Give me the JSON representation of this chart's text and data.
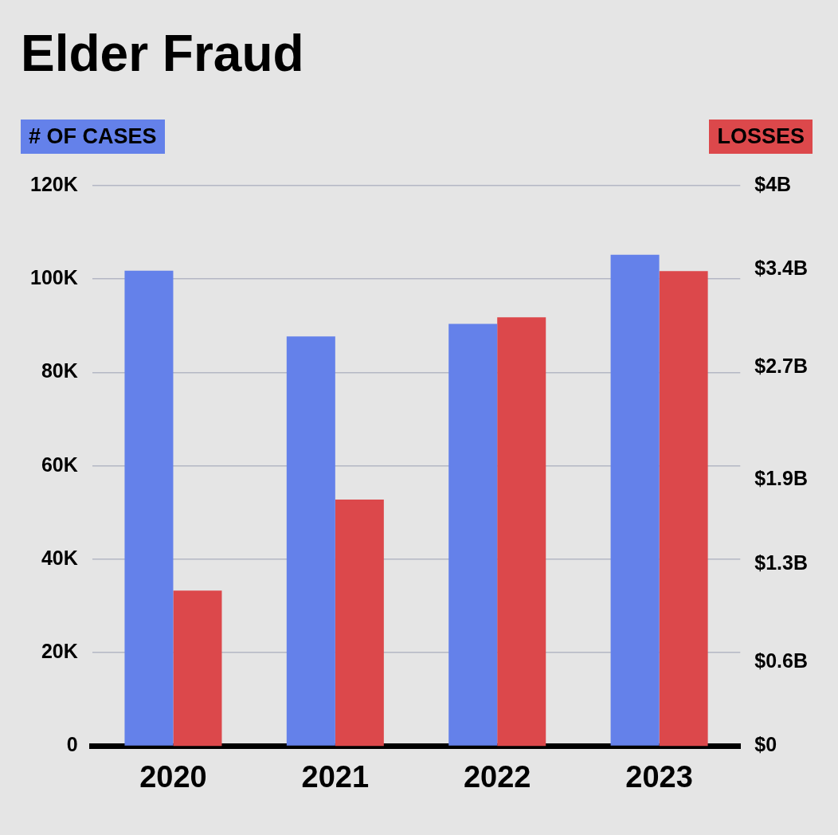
{
  "chart_data": {
    "type": "bar",
    "title": "Elder Fraud",
    "ylabel": "# OF CASES",
    "y2label": "LOSSES",
    "categories": [
      "2020",
      "2021",
      "2022",
      "2023"
    ],
    "series": [
      {
        "color": "#6481ea",
        "values": [
          101800,
          87700,
          90400,
          105200
        ]
      },
      {
        "color": "#dc484b",
        "axis": "y2",
        "values": [
          1.11,
          1.76,
          3.06,
          3.39
        ]
      }
    ],
    "ylim": [
      0,
      120000
    ],
    "yticks": [
      {
        "value": 0,
        "label": "0"
      },
      {
        "value": 20000,
        "label": "20K"
      },
      {
        "value": 40000,
        "label": "40K"
      },
      {
        "value": 60000,
        "label": "60K"
      },
      {
        "value": 80000,
        "label": "80K"
      },
      {
        "value": 100000,
        "label": "100K"
      },
      {
        "value": 120000,
        "label": "120K"
      }
    ],
    "y2lim": [
      0,
      4
    ],
    "y2ticks": [
      {
        "value": 0,
        "label": "$0"
      },
      {
        "value": 0.6,
        "label": "$0.6B"
      },
      {
        "value": 1.3,
        "label": "$1.3B"
      },
      {
        "value": 1.9,
        "label": "$1.9B"
      },
      {
        "value": 2.7,
        "label": "$2.7B"
      },
      {
        "value": 3.4,
        "label": "$3.4B"
      },
      {
        "value": 4,
        "label": "$4B"
      }
    ],
    "grid": "y"
  }
}
